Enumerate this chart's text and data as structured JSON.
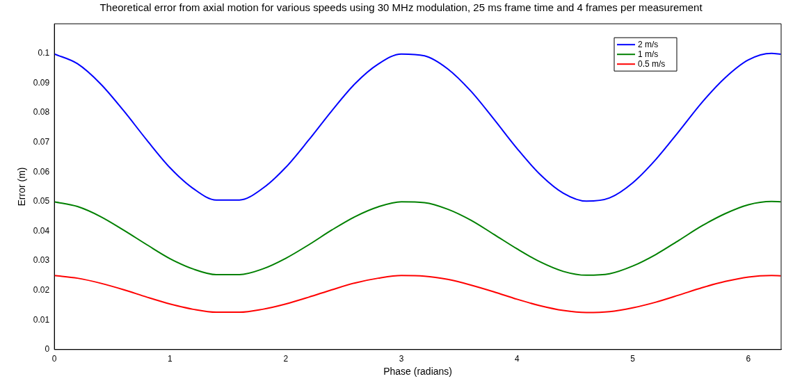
{
  "chart_data": {
    "type": "line",
    "title": "Theoretical error from axial motion for various speeds using 30 MHz modulation, 25 ms frame time and 4 frames per measurement",
    "xlabel": "Phase (radians)",
    "ylabel": "Error (m)",
    "x": [
      0,
      0.2,
      0.4,
      0.6,
      0.8,
      1.0,
      1.2,
      1.4,
      1.6,
      1.8,
      2.0,
      2.2,
      2.4,
      2.6,
      2.8,
      3.0,
      3.2,
      3.4,
      3.6,
      3.8,
      4.0,
      4.2,
      4.4,
      4.6,
      4.8,
      5.0,
      5.2,
      5.4,
      5.6,
      5.8,
      6.0,
      6.2,
      6.28
    ],
    "series": [
      {
        "name": "2 m/s",
        "color": "#0000ff",
        "values": [
          0.0998,
          0.0965,
          0.0897,
          0.0806,
          0.0707,
          0.0614,
          0.0544,
          0.0505,
          0.0505,
          0.0544,
          0.0615,
          0.0708,
          0.0807,
          0.0898,
          0.0964,
          0.0998,
          0.0992,
          0.0948,
          0.0873,
          0.0778,
          0.0679,
          0.0591,
          0.0528,
          0.0501,
          0.0512,
          0.0563,
          0.0642,
          0.0737,
          0.0835,
          0.0918,
          0.0978,
          0.1,
          0.0997
        ]
      },
      {
        "name": "1 m/s",
        "color": "#008000",
        "values": [
          0.0499,
          0.0483,
          0.0449,
          0.0403,
          0.0354,
          0.0307,
          0.0272,
          0.0253,
          0.0253,
          0.0272,
          0.0308,
          0.0354,
          0.0404,
          0.0449,
          0.0482,
          0.0499,
          0.0496,
          0.0474,
          0.0437,
          0.0389,
          0.034,
          0.0296,
          0.0264,
          0.0251,
          0.0256,
          0.0282,
          0.0321,
          0.0369,
          0.0418,
          0.0459,
          0.0489,
          0.05,
          0.0499
        ]
      },
      {
        "name": "0.5 m/s",
        "color": "#ff0000",
        "values": [
          0.025,
          0.0241,
          0.0224,
          0.0202,
          0.0177,
          0.0154,
          0.0136,
          0.0126,
          0.0126,
          0.0136,
          0.0154,
          0.0177,
          0.0202,
          0.0225,
          0.0241,
          0.025,
          0.0248,
          0.0237,
          0.0218,
          0.0195,
          0.017,
          0.0148,
          0.0132,
          0.0125,
          0.0128,
          0.0141,
          0.016,
          0.0184,
          0.0209,
          0.023,
          0.0245,
          0.025,
          0.0249
        ]
      }
    ],
    "xlim": [
      0,
      6.2832
    ],
    "xticks": [
      0,
      1,
      2,
      3,
      4,
      5,
      6
    ],
    "ylim": [
      0,
      0.11
    ],
    "yticks": [
      0,
      0.01,
      0.02,
      0.03,
      0.04,
      0.05,
      0.06,
      0.07,
      0.08,
      0.09,
      0.1
    ],
    "legend": "top right",
    "marker": "none",
    "line_style": "solid",
    "grid": false
  }
}
